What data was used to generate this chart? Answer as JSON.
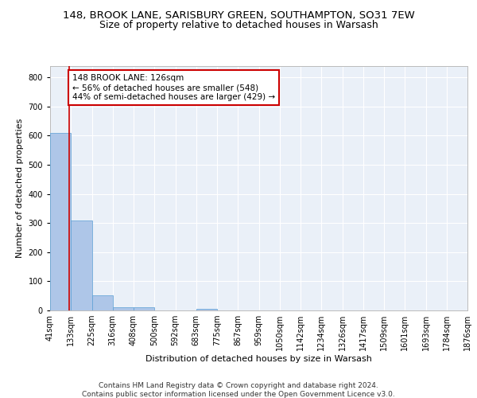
{
  "title_line1": "148, BROOK LANE, SARISBURY GREEN, SOUTHAMPTON, SO31 7EW",
  "title_line2": "Size of property relative to detached houses in Warsash",
  "xlabel": "Distribution of detached houses by size in Warsash",
  "ylabel": "Number of detached properties",
  "footnote1": "Contains HM Land Registry data © Crown copyright and database right 2024.",
  "footnote2": "Contains public sector information licensed under the Open Government Licence v3.0.",
  "bin_edges": [
    41,
    133,
    225,
    316,
    408,
    500,
    592,
    683,
    775,
    867,
    959,
    1050,
    1142,
    1234,
    1326,
    1417,
    1509,
    1601,
    1693,
    1784,
    1876
  ],
  "bin_labels": [
    "41sqm",
    "133sqm",
    "225sqm",
    "316sqm",
    "408sqm",
    "500sqm",
    "592sqm",
    "683sqm",
    "775sqm",
    "867sqm",
    "959sqm",
    "1050sqm",
    "1142sqm",
    "1234sqm",
    "1326sqm",
    "1417sqm",
    "1509sqm",
    "1601sqm",
    "1693sqm",
    "1784sqm",
    "1876sqm"
  ],
  "bar_heights": [
    608,
    310,
    52,
    10,
    11,
    0,
    0,
    5,
    0,
    0,
    0,
    0,
    0,
    0,
    0,
    0,
    0,
    0,
    0,
    0
  ],
  "bar_color": "#aec6e8",
  "bar_edge_color": "#5a9fd4",
  "property_size": 126,
  "property_line_color": "#cc0000",
  "annotation_text": "148 BROOK LANE: 126sqm\n← 56% of detached houses are smaller (548)\n44% of semi-detached houses are larger (429) →",
  "annotation_box_color": "#ffffff",
  "annotation_box_edge_color": "#cc0000",
  "ylim": [
    0,
    840
  ],
  "yticks": [
    0,
    100,
    200,
    300,
    400,
    500,
    600,
    700,
    800
  ],
  "background_color": "#eaf0f8",
  "grid_color": "#ffffff",
  "title_fontsize": 9.5,
  "subtitle_fontsize": 9,
  "axis_label_fontsize": 8,
  "tick_fontsize": 7,
  "annotation_fontsize": 7.5,
  "footnote_fontsize": 6.5
}
